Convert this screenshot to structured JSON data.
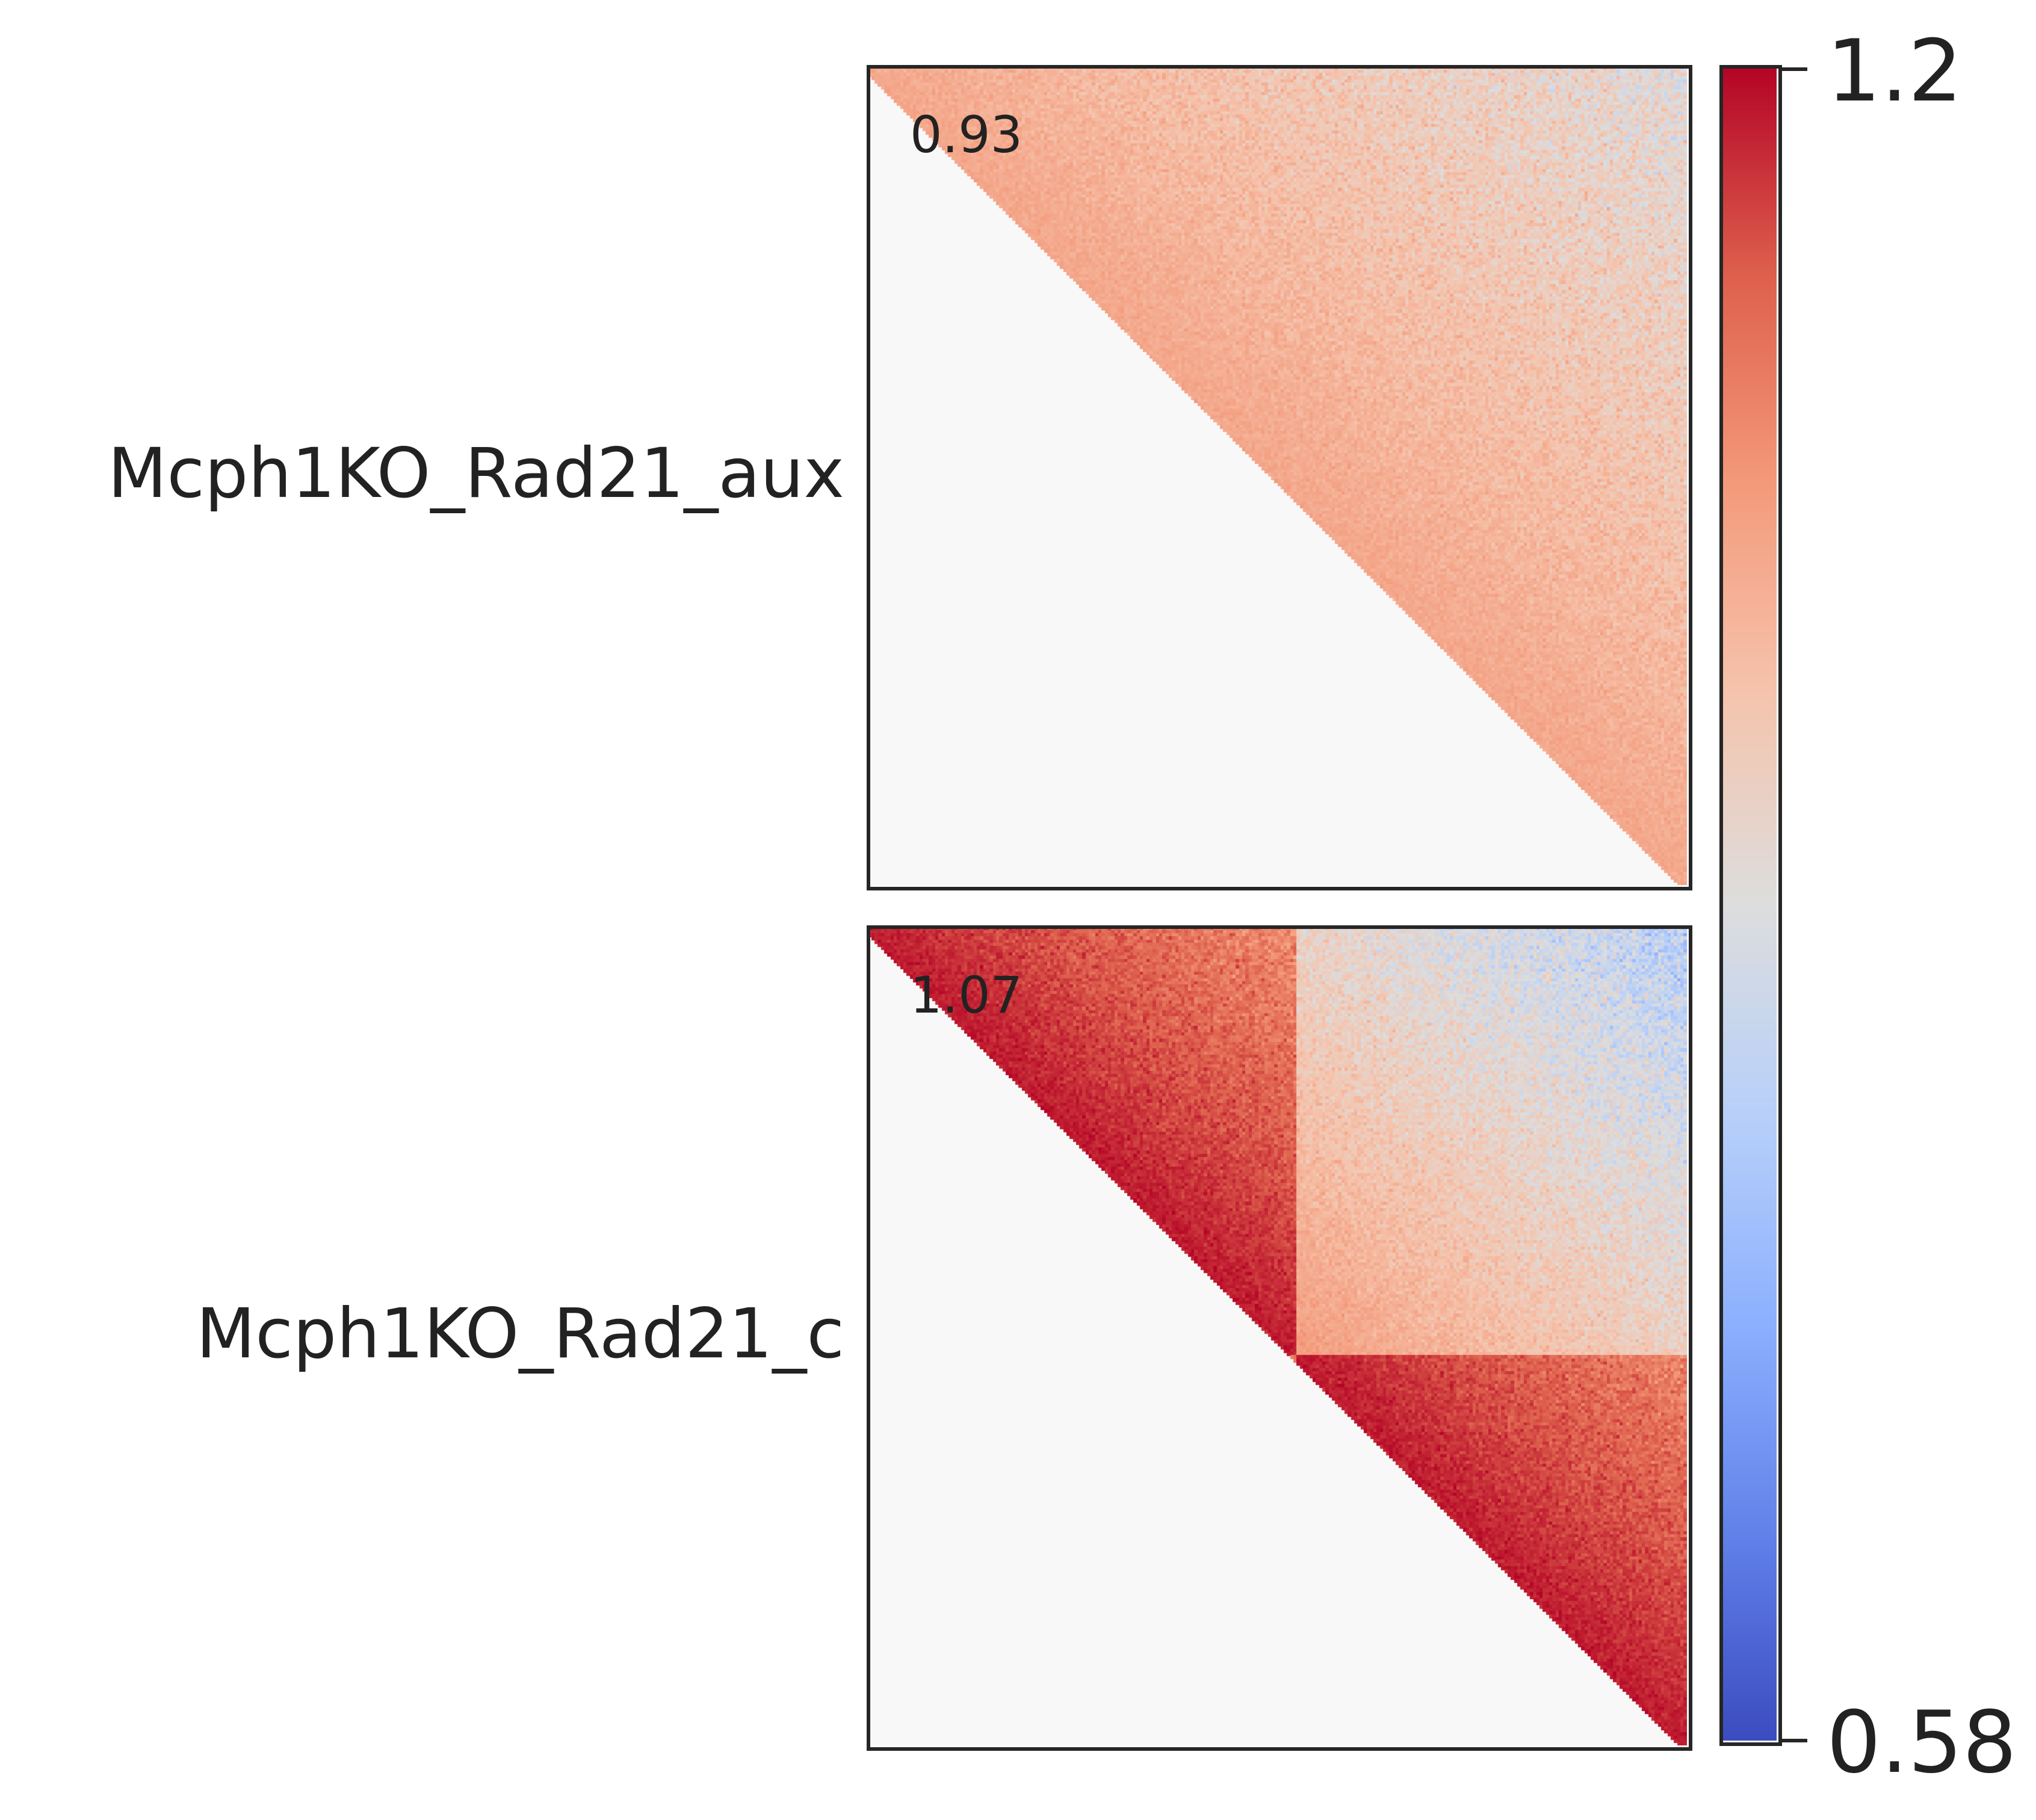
{
  "chart_data": {
    "type": "heatmap",
    "description_scale": "observed/expected pileup matrices, upper triangle shown",
    "colormap": "coolwarm",
    "colorbar": {
      "min": 0.58,
      "max": 1.2,
      "min_label": "0.58",
      "max_label": "1.2",
      "position": "right"
    },
    "panels": [
      {
        "label": "Mcph1KO_Rad21_aux",
        "score": "0.93",
        "pattern": "aux"
      },
      {
        "label": "Mcph1KO_Rad21_c",
        "score": "1.07",
        "pattern": "ctrl"
      }
    ],
    "lower_triangle_color": "#f8f8f8"
  }
}
